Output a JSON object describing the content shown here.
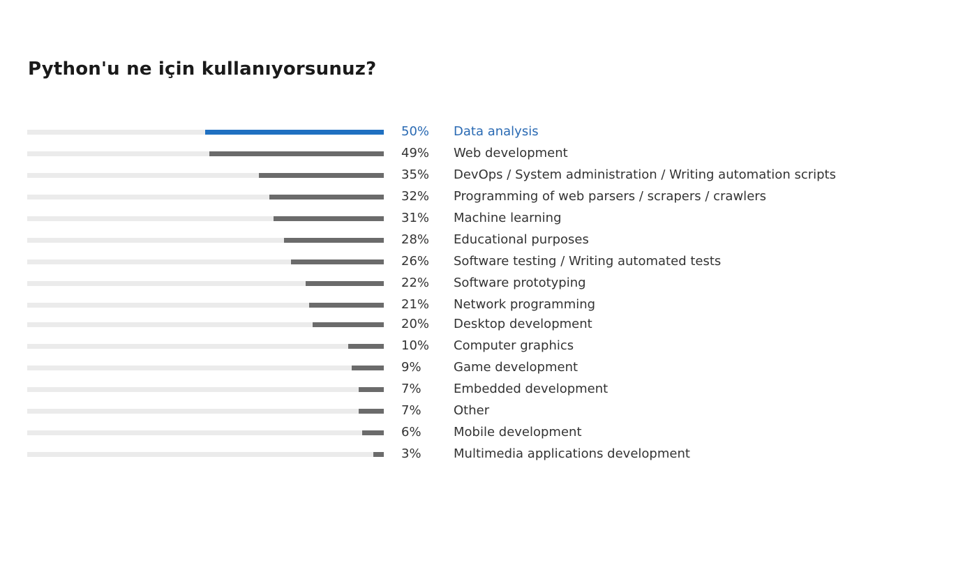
{
  "colors": {
    "highlight": "#1f70c1",
    "bar": "#6b6b6b",
    "track": "#ebebeb",
    "text": "#333333",
    "highlight_text": "#2a6ab3"
  },
  "chart_data": {
    "type": "bar",
    "orientation": "horizontal",
    "title": "Python'u ne için kullanıyorsunuz?",
    "unit": "%",
    "xlim": [
      0,
      100
    ],
    "highlighted_category": "Data analysis",
    "categories": [
      "Data analysis",
      "Web development",
      "DevOps / System administration / Writing automation scripts",
      "Programming of web parsers / scrapers / crawlers",
      "Machine learning",
      "Educational purposes",
      "Software testing / Writing automated tests",
      "Software prototyping",
      "Network programming",
      "Desktop development",
      "Computer graphics",
      "Game development",
      "Embedded development",
      "Other",
      "Mobile development",
      "Multimedia applications development"
    ],
    "values": [
      50,
      49,
      35,
      32,
      31,
      28,
      26,
      22,
      21,
      20,
      10,
      9,
      7,
      7,
      6,
      3
    ],
    "value_labels": [
      "50%",
      "49%",
      "35%",
      "32%",
      "31%",
      "28%",
      "26%",
      "22%",
      "21%",
      "20%",
      "10%",
      "9%",
      "7%",
      "7%",
      "6%",
      "3%"
    ]
  }
}
